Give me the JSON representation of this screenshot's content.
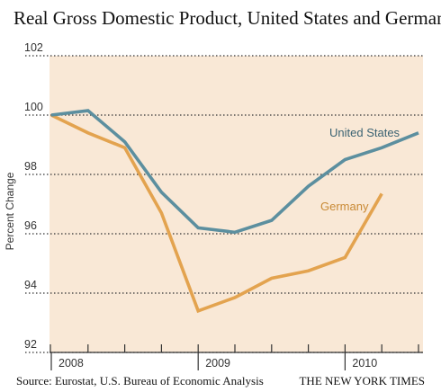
{
  "chart_data": {
    "type": "line",
    "title": "Real Gross Domestic Product, United States and Germany",
    "ylabel": "Percent Change",
    "xlabel": "",
    "ylim": [
      92,
      102
    ],
    "yticks": [
      "102",
      "100",
      "98",
      "96",
      "94",
      "92"
    ],
    "year_labels": [
      "2008",
      "2009",
      "2010"
    ],
    "quarters": [
      "2008 Q1",
      "2008 Q2",
      "2008 Q3",
      "2008 Q4",
      "2009 Q1",
      "2009 Q2",
      "2009 Q3",
      "2009 Q4",
      "2010 Q1",
      "2010 Q2",
      "2010 Q3"
    ],
    "grid": true,
    "series": [
      {
        "name": "United States",
        "color": "#5c8f9f",
        "values": [
          100.0,
          100.15,
          99.1,
          97.4,
          96.2,
          96.05,
          96.45,
          97.6,
          98.5,
          98.9,
          99.4
        ]
      },
      {
        "name": "Germany",
        "color": "#e3a34f",
        "values": [
          100.0,
          99.4,
          98.9,
          96.7,
          93.4,
          93.85,
          94.5,
          94.75,
          95.2,
          97.35,
          null
        ]
      }
    ],
    "background_color": "#f9e8d6"
  },
  "source": {
    "left": "Source: Eurostat, U.S. Bureau of Economic Analysis",
    "right": "THE NEW YORK TIMES"
  }
}
